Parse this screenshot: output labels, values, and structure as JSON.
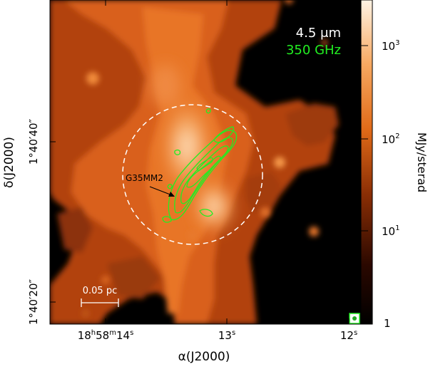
{
  "band_label": "4.5 μm",
  "freq_label": "350 GHz",
  "source_label": "G35MM2",
  "scalebar_label": "0.05 pc",
  "colorbar_label": "MJy/sterad",
  "colorbar_ticks": [
    {
      "base": "1",
      "exp": ""
    },
    {
      "base": "10",
      "exp": "1"
    },
    {
      "base": "10",
      "exp": "2"
    },
    {
      "base": "10",
      "exp": "3"
    }
  ],
  "x_axis_label": "α(J2000)",
  "y_axis_label": "δ(J2000)",
  "x_ticks": [
    {
      "h": "18",
      "m": "58",
      "s": "14"
    },
    {
      "h": "",
      "m": "",
      "s": "13"
    },
    {
      "h": "",
      "m": "",
      "s": "12"
    }
  ],
  "y_ticks": [
    "1°40′20″",
    "1°40′40″"
  ],
  "colors": {
    "contour": "#22ee22",
    "band_text": "#ffffff",
    "freq_text": "#22ee22",
    "circle": "#ffffff",
    "background": "#000000"
  }
}
